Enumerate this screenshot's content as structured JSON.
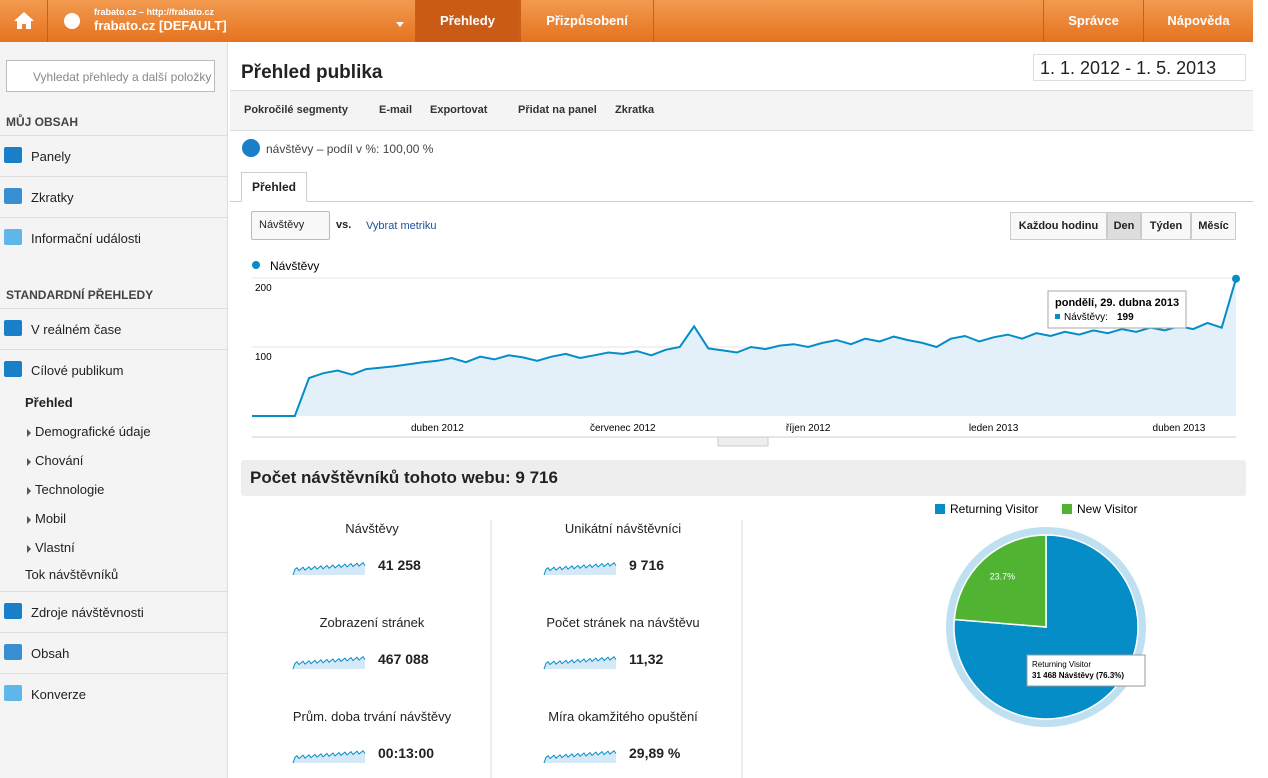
{
  "header": {
    "site_line1": "frabato.cz – http://frabato.cz",
    "site_line2": "frabato.cz [DEFAULT]",
    "tabs": [
      "Přehledy",
      "Přizpůsobení"
    ],
    "right_tabs": [
      "Správce",
      "Nápověda"
    ]
  },
  "sidebar": {
    "search": "Vyhledat přehledy a další položky",
    "my_content_heading": "MŮJ OBSAH",
    "my_content": [
      "Panely",
      "Zkratky",
      "Informační události"
    ],
    "standard_heading": "STANDARDNÍ PŘEHLEDY",
    "top_items": [
      "V reálném čase",
      "Cílové publikum"
    ],
    "audience_items": [
      "Přehled",
      "Demografické údaje",
      "Chování",
      "Technologie",
      "Mobil",
      "Vlastní",
      "Tok návštěvníků"
    ],
    "bottom_items": [
      "Zdroje návštěvnosti",
      "Obsah",
      "Konverze"
    ]
  },
  "page": {
    "title": "Přehled publika",
    "date_range": "1. 1. 2012 - 1. 5. 2013",
    "toolbar": [
      "Pokročilé segmenty",
      "E-mail",
      "Exportovat",
      "Přidat na panel",
      "Zkratka"
    ],
    "segment": "návštěvy – podíl v %: 100,00 %",
    "tab": "Přehled",
    "metric_select": "Návštěvy",
    "vs": "vs.",
    "pick_metric": "Vybrat metriku",
    "granularity": [
      "Každou hodinu",
      "Den",
      "Týden",
      "Měsíc"
    ],
    "summary": "Počet návštěvníků tohoto webu: 9 716",
    "metrics": [
      {
        "label": "Návštěvy",
        "value": "41 258"
      },
      {
        "label": "Unikátní návštěvníci",
        "value": "9 716"
      },
      {
        "label": "Zobrazení stránek",
        "value": "467 088"
      },
      {
        "label": "Počet stránek na návštěvu",
        "value": "11,32"
      },
      {
        "label": "Prům. doba trvání návštěvy",
        "value": "00:13:00"
      },
      {
        "label": "Míra okamžitého opuštění",
        "value": "29,89 %"
      }
    ]
  },
  "chart_data": [
    {
      "type": "line",
      "categories": [
        null,
        null,
        null,
        null,
        null,
        null,
        null,
        null,
        null,
        null,
        null,
        null,
        null,
        "duben 2012",
        null,
        null,
        null,
        null,
        null,
        null,
        null,
        null,
        null,
        null,
        null,
        null,
        "červenec 2012",
        null,
        null,
        null,
        null,
        null,
        null,
        null,
        null,
        null,
        null,
        null,
        null,
        "říjen 2012",
        null,
        null,
        null,
        null,
        null,
        null,
        null,
        null,
        null,
        null,
        null,
        null,
        "leden 2013",
        null,
        null,
        null,
        null,
        null,
        null,
        null,
        null,
        null,
        null,
        null,
        null,
        "duben 2013",
        null,
        null,
        null,
        null
      ],
      "series": [
        {
          "name": "Návštěvy",
          "color": "#058dc7",
          "values": [
            0,
            0,
            0,
            0,
            55,
            62,
            66,
            60,
            68,
            70,
            72,
            75,
            78,
            80,
            84,
            78,
            86,
            82,
            88,
            85,
            80,
            86,
            90,
            84,
            88,
            92,
            90,
            94,
            88,
            96,
            100,
            130,
            98,
            95,
            92,
            100,
            97,
            102,
            104,
            100,
            106,
            110,
            104,
            112,
            108,
            115,
            110,
            106,
            100,
            112,
            116,
            108,
            114,
            118,
            112,
            120,
            116,
            122,
            118,
            124,
            120,
            126,
            122,
            128,
            124,
            130,
            126,
            135,
            128,
            199
          ]
        }
      ],
      "ylim": [
        0,
        200
      ],
      "yticks": [
        100,
        200
      ],
      "grid": true,
      "tooltip": {
        "title": "pondělí, 29. dubna 2013",
        "label": "Návštěvy:"
      }
    },
    {
      "type": "pie",
      "categories": [
        "Returning Visitor",
        "New Visitor"
      ],
      "values": [
        76.3,
        23.7
      ],
      "value_labels": [
        null,
        "23.7%"
      ],
      "colors": [
        "#058dc7",
        "#50b432"
      ],
      "tooltip_text": "31 468 Návštěvy (76.3%)"
    }
  ]
}
